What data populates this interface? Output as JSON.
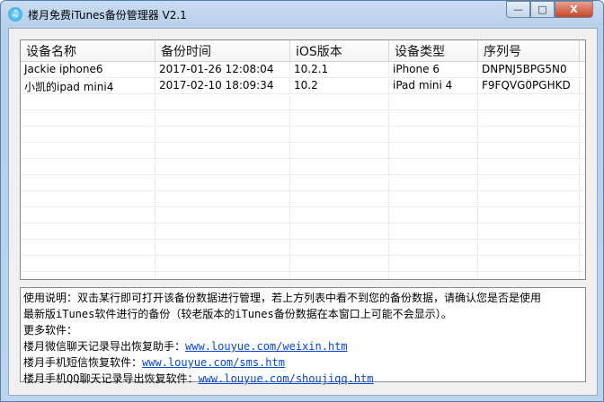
{
  "window": {
    "title": "楼月免费iTunes备份管理器 V2.1",
    "controls": {
      "minimize": "—",
      "maximize": "□",
      "close": "X"
    }
  },
  "table": {
    "columns": [
      "设备名称",
      "备份时间",
      "iOS版本",
      "设备类型",
      "序列号"
    ],
    "rows": [
      [
        "Jackie iphone6",
        "2017-01-26 12:08:04",
        "10.2.1",
        "iPhone 6",
        "DNPNJ5BPG5N0"
      ],
      [
        "小凯的ipad mini4",
        "2017-02-10 18:09:34",
        "10.2",
        "iPad mini 4",
        "F9FQVG0PGHKD"
      ]
    ]
  },
  "info": {
    "line1": "使用说明：双击某行即可打开该备份数据进行管理，若上方列表中看不到您的备份数据，请确认您是否是使用",
    "line2": "最新版iTunes软件进行的备份（较老版本的iTunes备份数据在本窗口上可能不会显示）。",
    "more": "更多软件：",
    "links": [
      {
        "label": "楼月微信聊天记录导出恢复助手：",
        "url": "www.louyue.com/weixin.htm"
      },
      {
        "label": "楼月手机短信恢复软件：",
        "url": "www.louyue.com/sms.htm"
      },
      {
        "label": "楼月手机QQ聊天记录导出恢复软件：",
        "url": "www.louyue.com/shoujiqq.htm"
      }
    ]
  }
}
